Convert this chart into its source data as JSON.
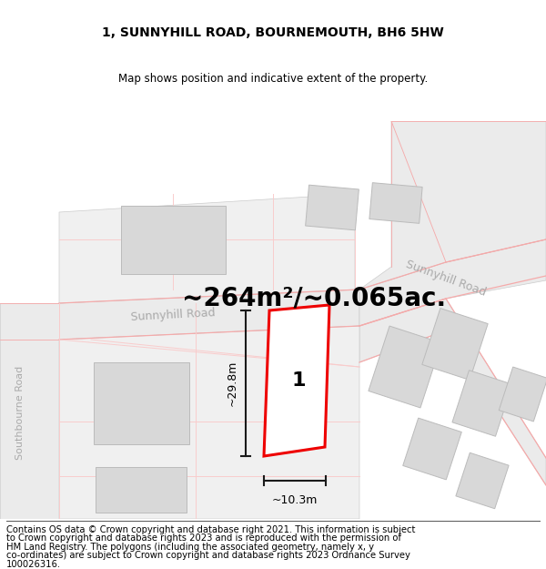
{
  "title": "1, SUNNYHILL ROAD, BOURNEMOUTH, BH6 5HW",
  "subtitle": "Map shows position and indicative extent of the property.",
  "area_text": "~264m²/~0.065ac.",
  "width_label": "~10.3m",
  "height_label": "~29.8m",
  "plot_number": "1",
  "road_label_left": "Sunnyhill Road",
  "road_label_right": "Sunnyhill Road",
  "road_label_vert": "Southbourne Road",
  "footer_lines": [
    "Contains OS data © Crown copyright and database right 2021. This information is subject",
    "to Crown copyright and database rights 2023 and is reproduced with the permission of",
    "HM Land Registry. The polygons (including the associated geometry, namely x, y",
    "co-ordinates) are subject to Crown copyright and database rights 2023 Ordnance Survey",
    "100026316."
  ],
  "bg_white": "#ffffff",
  "road_fill": "#ebebeb",
  "road_edge": "#cccccc",
  "building_fill": "#d8d8d8",
  "building_edge": "#bbbbbb",
  "red_color": "#ee0000",
  "pink_color": "#f5aaaa",
  "pink_light": "#f9cccc",
  "measure_color": "#1a1a1a",
  "label_color": "#aaaaaa",
  "title_fs": 10,
  "subtitle_fs": 8.5,
  "area_fs": 20,
  "road_label_fs": 9,
  "plot_num_fs": 16,
  "measure_fs": 9,
  "footer_fs": 7.2
}
